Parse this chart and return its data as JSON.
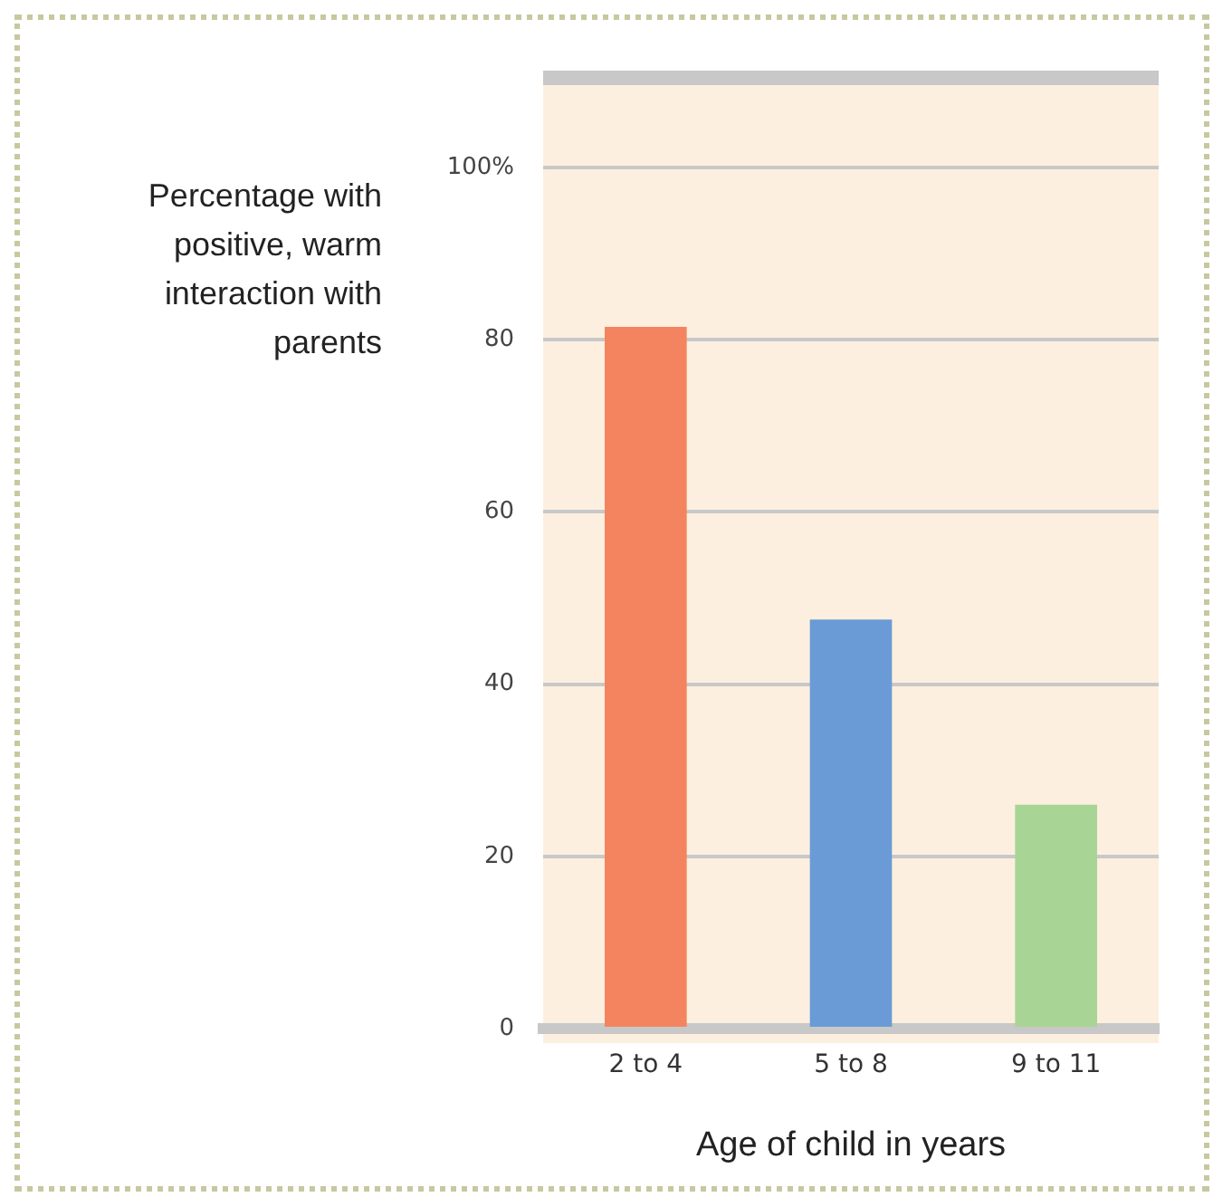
{
  "chart_data": {
    "type": "bar",
    "ylabel": "Percentage with positive, warm interaction with parents",
    "xlabel": "Age of child in years",
    "categories": [
      "2 to 4",
      "5 to 8",
      "9 to 11"
    ],
    "values": [
      81.5,
      47.5,
      26
    ],
    "colors": [
      "#f4845f",
      "#6a9bd6",
      "#a8d595"
    ],
    "ylim": [
      0,
      110
    ],
    "yticks": [
      0,
      20,
      40,
      60,
      80,
      {
        "value": 100,
        "label": "100%"
      }
    ],
    "grid": "y"
  }
}
